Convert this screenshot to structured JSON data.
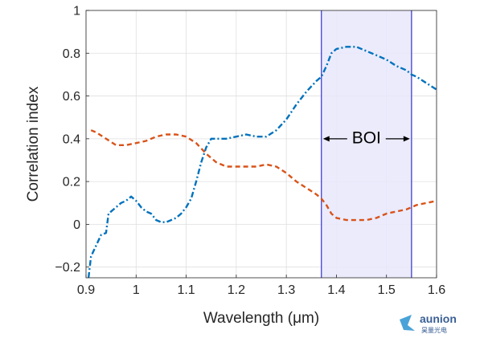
{
  "chart_data": {
    "type": "line",
    "xlabel": "Wavelength (μm)",
    "ylabel": "Correlation index",
    "xlim": [
      0.9,
      1.6
    ],
    "ylim": [
      -0.25,
      1.0
    ],
    "xticks": [
      0.9,
      1.0,
      1.1,
      1.2,
      1.3,
      1.4,
      1.5,
      1.6
    ],
    "xtick_labels": [
      "0.9",
      "1",
      "1.1",
      "1.2",
      "1.3",
      "1.4",
      "1.5",
      "1.6"
    ],
    "yticks": [
      -0.2,
      0,
      0.2,
      0.4,
      0.6,
      0.8,
      1
    ],
    "ytick_labels": [
      "−0.2",
      "0",
      "0.2",
      "0.4",
      "0.6",
      "0.8",
      "1"
    ],
    "grid": true,
    "region": {
      "label": "BOI",
      "x0": 1.37,
      "x1": 1.55
    },
    "series": [
      {
        "style": "dash-dot",
        "color": "#0072bd",
        "points": [
          [
            0.905,
            -0.25
          ],
          [
            0.91,
            -0.15
          ],
          [
            0.92,
            -0.1
          ],
          [
            0.93,
            -0.05
          ],
          [
            0.94,
            -0.04
          ],
          [
            0.945,
            0.05
          ],
          [
            0.96,
            0.08
          ],
          [
            0.97,
            0.1
          ],
          [
            0.98,
            0.11
          ],
          [
            0.99,
            0.13
          ],
          [
            1.0,
            0.11
          ],
          [
            1.01,
            0.08
          ],
          [
            1.02,
            0.06
          ],
          [
            1.03,
            0.05
          ],
          [
            1.04,
            0.02
          ],
          [
            1.05,
            0.01
          ],
          [
            1.06,
            0.01
          ],
          [
            1.07,
            0.02
          ],
          [
            1.08,
            0.03
          ],
          [
            1.09,
            0.05
          ],
          [
            1.1,
            0.08
          ],
          [
            1.11,
            0.12
          ],
          [
            1.12,
            0.2
          ],
          [
            1.13,
            0.29
          ],
          [
            1.14,
            0.36
          ],
          [
            1.15,
            0.4
          ],
          [
            1.16,
            0.4
          ],
          [
            1.18,
            0.4
          ],
          [
            1.2,
            0.41
          ],
          [
            1.22,
            0.42
          ],
          [
            1.24,
            0.41
          ],
          [
            1.26,
            0.41
          ],
          [
            1.28,
            0.44
          ],
          [
            1.3,
            0.49
          ],
          [
            1.32,
            0.56
          ],
          [
            1.34,
            0.62
          ],
          [
            1.36,
            0.67
          ],
          [
            1.37,
            0.69
          ],
          [
            1.38,
            0.74
          ],
          [
            1.39,
            0.8
          ],
          [
            1.4,
            0.82
          ],
          [
            1.42,
            0.83
          ],
          [
            1.44,
            0.83
          ],
          [
            1.46,
            0.81
          ],
          [
            1.48,
            0.79
          ],
          [
            1.5,
            0.77
          ],
          [
            1.52,
            0.74
          ],
          [
            1.54,
            0.72
          ],
          [
            1.55,
            0.7
          ],
          [
            1.56,
            0.69
          ],
          [
            1.58,
            0.66
          ],
          [
            1.6,
            0.63
          ]
        ]
      },
      {
        "style": "dashed",
        "color": "#d95319",
        "points": [
          [
            0.91,
            0.44
          ],
          [
            0.92,
            0.43
          ],
          [
            0.94,
            0.4
          ],
          [
            0.96,
            0.37
          ],
          [
            0.98,
            0.37
          ],
          [
            1.0,
            0.38
          ],
          [
            1.02,
            0.39
          ],
          [
            1.04,
            0.41
          ],
          [
            1.06,
            0.42
          ],
          [
            1.08,
            0.42
          ],
          [
            1.1,
            0.41
          ],
          [
            1.12,
            0.38
          ],
          [
            1.14,
            0.33
          ],
          [
            1.16,
            0.29
          ],
          [
            1.18,
            0.27
          ],
          [
            1.2,
            0.27
          ],
          [
            1.22,
            0.27
          ],
          [
            1.24,
            0.27
          ],
          [
            1.26,
            0.28
          ],
          [
            1.28,
            0.27
          ],
          [
            1.3,
            0.24
          ],
          [
            1.32,
            0.2
          ],
          [
            1.34,
            0.17
          ],
          [
            1.36,
            0.14
          ],
          [
            1.37,
            0.12
          ],
          [
            1.38,
            0.09
          ],
          [
            1.39,
            0.05
          ],
          [
            1.4,
            0.03
          ],
          [
            1.42,
            0.02
          ],
          [
            1.44,
            0.02
          ],
          [
            1.46,
            0.02
          ],
          [
            1.48,
            0.03
          ],
          [
            1.5,
            0.05
          ],
          [
            1.52,
            0.06
          ],
          [
            1.54,
            0.07
          ],
          [
            1.55,
            0.08
          ],
          [
            1.56,
            0.09
          ],
          [
            1.58,
            0.1
          ],
          [
            1.6,
            0.11
          ]
        ]
      }
    ]
  },
  "logo": {
    "text": "aunion",
    "subtext": "昊量光电"
  }
}
